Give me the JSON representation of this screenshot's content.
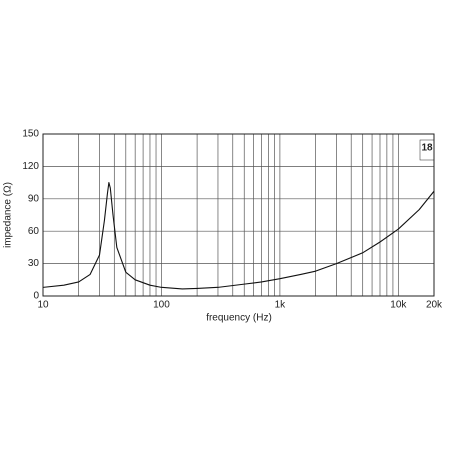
{
  "chart_data": {
    "type": "line",
    "xlabel": "frequency (Hz)",
    "ylabel": "impedance (Ω)",
    "logo": "18",
    "xscale": "log",
    "xlim": [
      10,
      20000
    ],
    "ylim": [
      0,
      150
    ],
    "xticks": [
      10,
      100,
      {
        "value": 1000,
        "label": "1k"
      },
      {
        "value": 10000,
        "label": "10k"
      },
      {
        "value": 20000,
        "label": "20k"
      }
    ],
    "x_minor_ticks": [
      20,
      30,
      40,
      50,
      60,
      70,
      80,
      90,
      200,
      300,
      400,
      500,
      600,
      700,
      800,
      900,
      2000,
      3000,
      4000,
      5000,
      6000,
      7000,
      8000,
      9000
    ],
    "yticks": [
      0,
      30,
      60,
      90,
      120,
      150
    ],
    "grid": true,
    "series": [
      {
        "color": "#111111",
        "x": [
          10,
          15,
          20,
          25,
          30,
          33,
          35,
          36,
          37,
          39,
          42,
          50,
          60,
          80,
          100,
          150,
          200,
          300,
          500,
          700,
          1000,
          1500,
          2000,
          3000,
          5000,
          7000,
          10000,
          15000,
          20000
        ],
        "values": [
          8,
          10,
          13,
          20,
          38,
          70,
          95,
          105,
          100,
          75,
          45,
          22,
          15,
          10,
          8,
          6.5,
          7,
          8,
          11,
          13,
          16,
          20,
          23,
          30,
          40,
          50,
          62,
          80,
          97
        ]
      }
    ]
  }
}
